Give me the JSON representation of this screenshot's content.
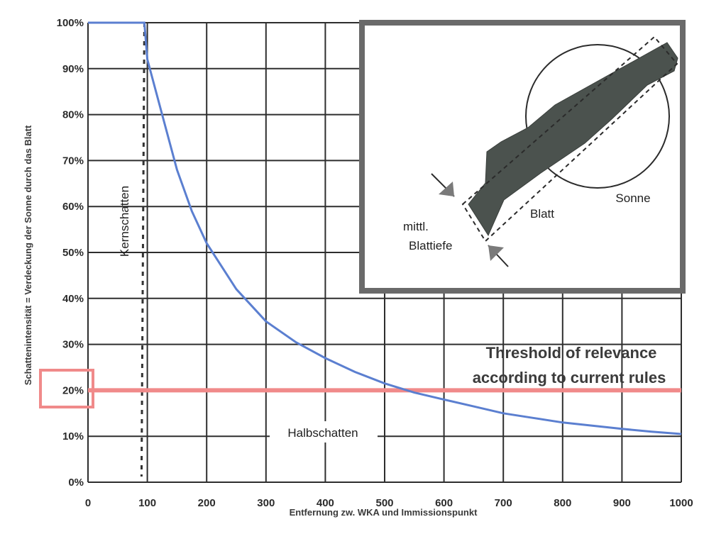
{
  "chart_data": {
    "type": "line",
    "xlabel": "Entfernung zw. WKA und Immissionspunkt",
    "ylabel": "Schattenintensität = Verdeckung der Sonne durch das Blatt",
    "xlim": [
      0,
      1000
    ],
    "ylim": [
      0,
      100
    ],
    "x_ticks": [
      "0",
      "100",
      "200",
      "300",
      "400",
      "500",
      "600",
      "700",
      "800",
      "900",
      "1000"
    ],
    "y_ticks": [
      "0%",
      "10%",
      "20%",
      "30%",
      "40%",
      "50%",
      "60%",
      "70%",
      "80%",
      "90%",
      "100%"
    ],
    "grid": true,
    "series": [
      {
        "x": [
          0,
          95,
          100,
          125,
          150,
          175,
          200,
          250,
          300,
          350,
          400,
          450,
          500,
          550,
          600,
          650,
          700,
          750,
          800,
          850,
          900,
          950,
          1000
        ],
        "y": [
          100,
          100,
          92,
          80,
          68,
          59,
          52,
          42,
          35,
          30.5,
          27,
          24,
          21.5,
          19.5,
          18,
          16.5,
          15,
          14,
          13,
          12.3,
          11.6,
          11,
          10.5
        ],
        "color": "#5b7fd0"
      }
    ],
    "threshold": {
      "y": 20,
      "label_line1": "Threshold of relevance",
      "label_line2": "according to current rules",
      "color": "#f08080"
    },
    "kernschatten_x": 95,
    "annotations": {
      "kernschatten": "Kernschatten",
      "halbschatten": "Halbschatten"
    },
    "inset": {
      "sonne": "Sonne",
      "blatt": "Blatt",
      "tiefe_line1": "mittl.",
      "tiefe_line2": "Blattiefe"
    }
  }
}
